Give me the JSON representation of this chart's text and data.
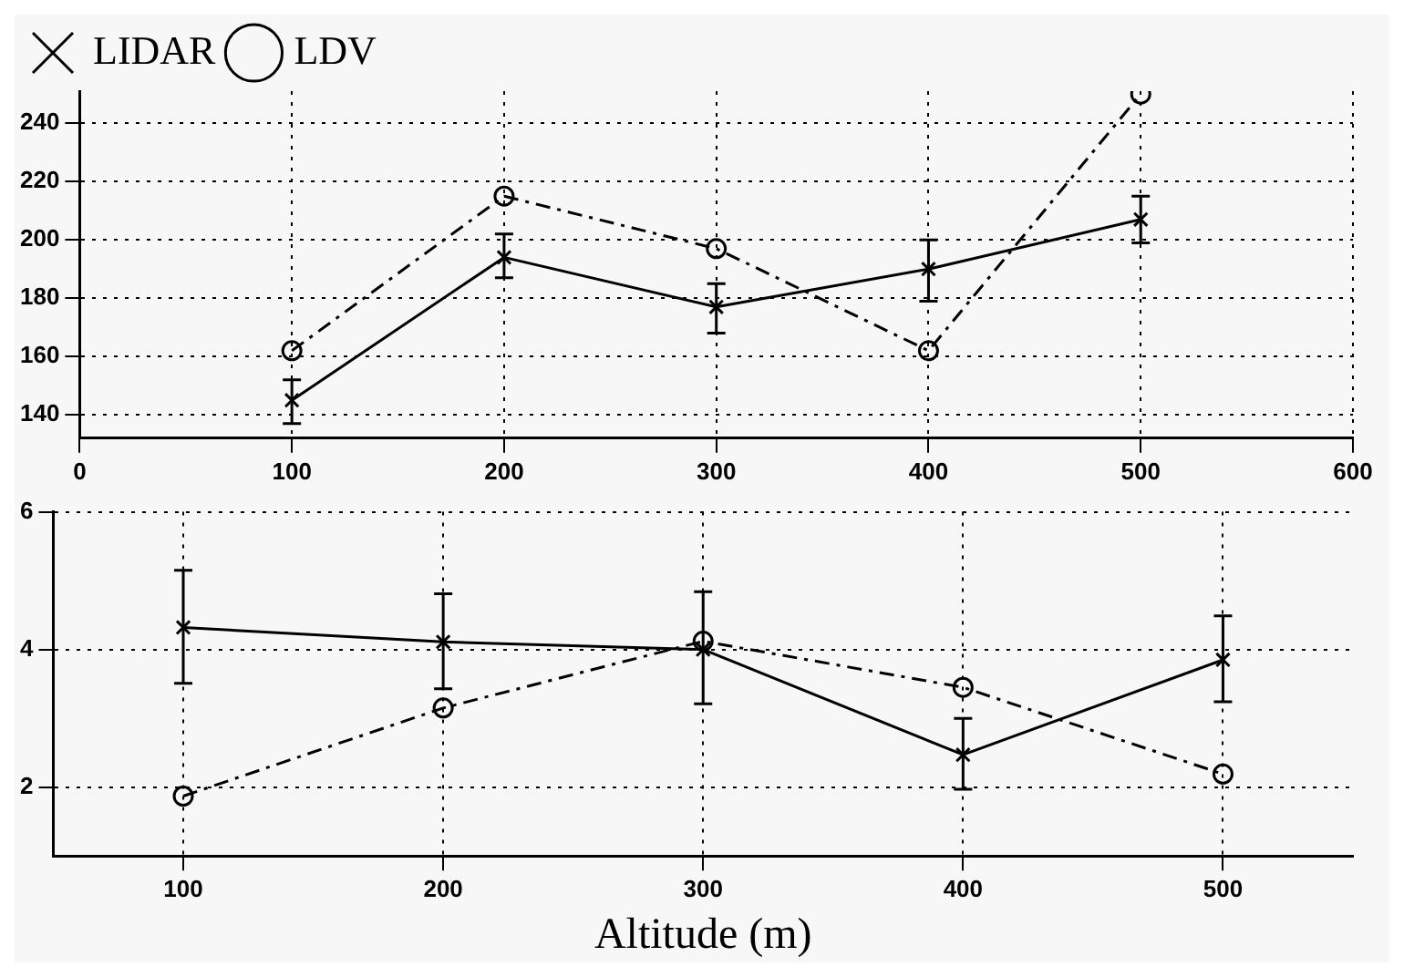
{
  "chart_data": [
    {
      "type": "line",
      "legend": "top left",
      "grid": true,
      "xlim": [
        0,
        600
      ],
      "xticks": [
        0,
        100,
        200,
        300,
        400,
        500,
        600
      ],
      "ylim": [
        132,
        251
      ],
      "yticks": [
        140,
        160,
        180,
        200,
        220,
        240
      ],
      "series": [
        {
          "name": "LIDAR",
          "color": "#000000",
          "marker": "cross",
          "line_style": "solid",
          "x": [
            100,
            200,
            300,
            400,
            500
          ],
          "values": [
            145,
            194,
            177,
            190,
            207
          ],
          "errors": [
            [
              137,
              152
            ],
            [
              187,
              202
            ],
            [
              168,
              185
            ],
            [
              179,
              200
            ],
            [
              199,
              215
            ]
          ]
        },
        {
          "name": "LDV",
          "color": "#000000",
          "marker": "circle",
          "line_style": "dashed",
          "x": [
            100,
            200,
            300,
            400,
            500
          ],
          "values": [
            162,
            215,
            197,
            162,
            250
          ]
        }
      ]
    },
    {
      "type": "line",
      "legend": false,
      "grid": true,
      "xlabel": "Altitude (m)",
      "xlim": [
        50,
        550
      ],
      "xticks": [
        100,
        200,
        300,
        400,
        500
      ],
      "ylim": [
        1,
        6
      ],
      "yticks": [
        2,
        4,
        6
      ],
      "series": [
        {
          "color": "#000000",
          "marker": "cross",
          "line_style": "solid",
          "x": [
            100,
            200,
            300,
            400,
            500
          ],
          "values": [
            4.32,
            4.11,
            4.0,
            2.47,
            3.85
          ],
          "errors": [
            [
              3.51,
              5.15
            ],
            [
              3.43,
              4.81
            ],
            [
              3.21,
              4.84
            ],
            [
              1.97,
              3.0
            ],
            [
              3.24,
              4.49
            ]
          ]
        },
        {
          "color": "#000000",
          "marker": "circle",
          "line_style": "dashed",
          "x": [
            100,
            200,
            300,
            400,
            500
          ],
          "values": [
            1.87,
            3.15,
            4.12,
            3.45,
            2.19
          ]
        }
      ]
    }
  ]
}
